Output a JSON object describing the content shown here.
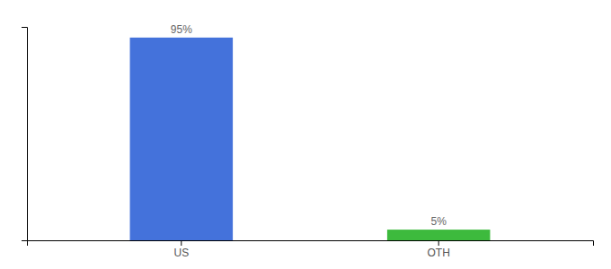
{
  "chart_data": {
    "type": "bar",
    "categories": [
      "US",
      "OTH"
    ],
    "values": [
      95,
      5
    ],
    "value_labels": [
      "95%",
      "5%"
    ],
    "colors": [
      "#4472db",
      "#3dba3d"
    ],
    "ylim": [
      0,
      100
    ],
    "data_labels": true,
    "tick_labels": "x",
    "grid": false
  }
}
